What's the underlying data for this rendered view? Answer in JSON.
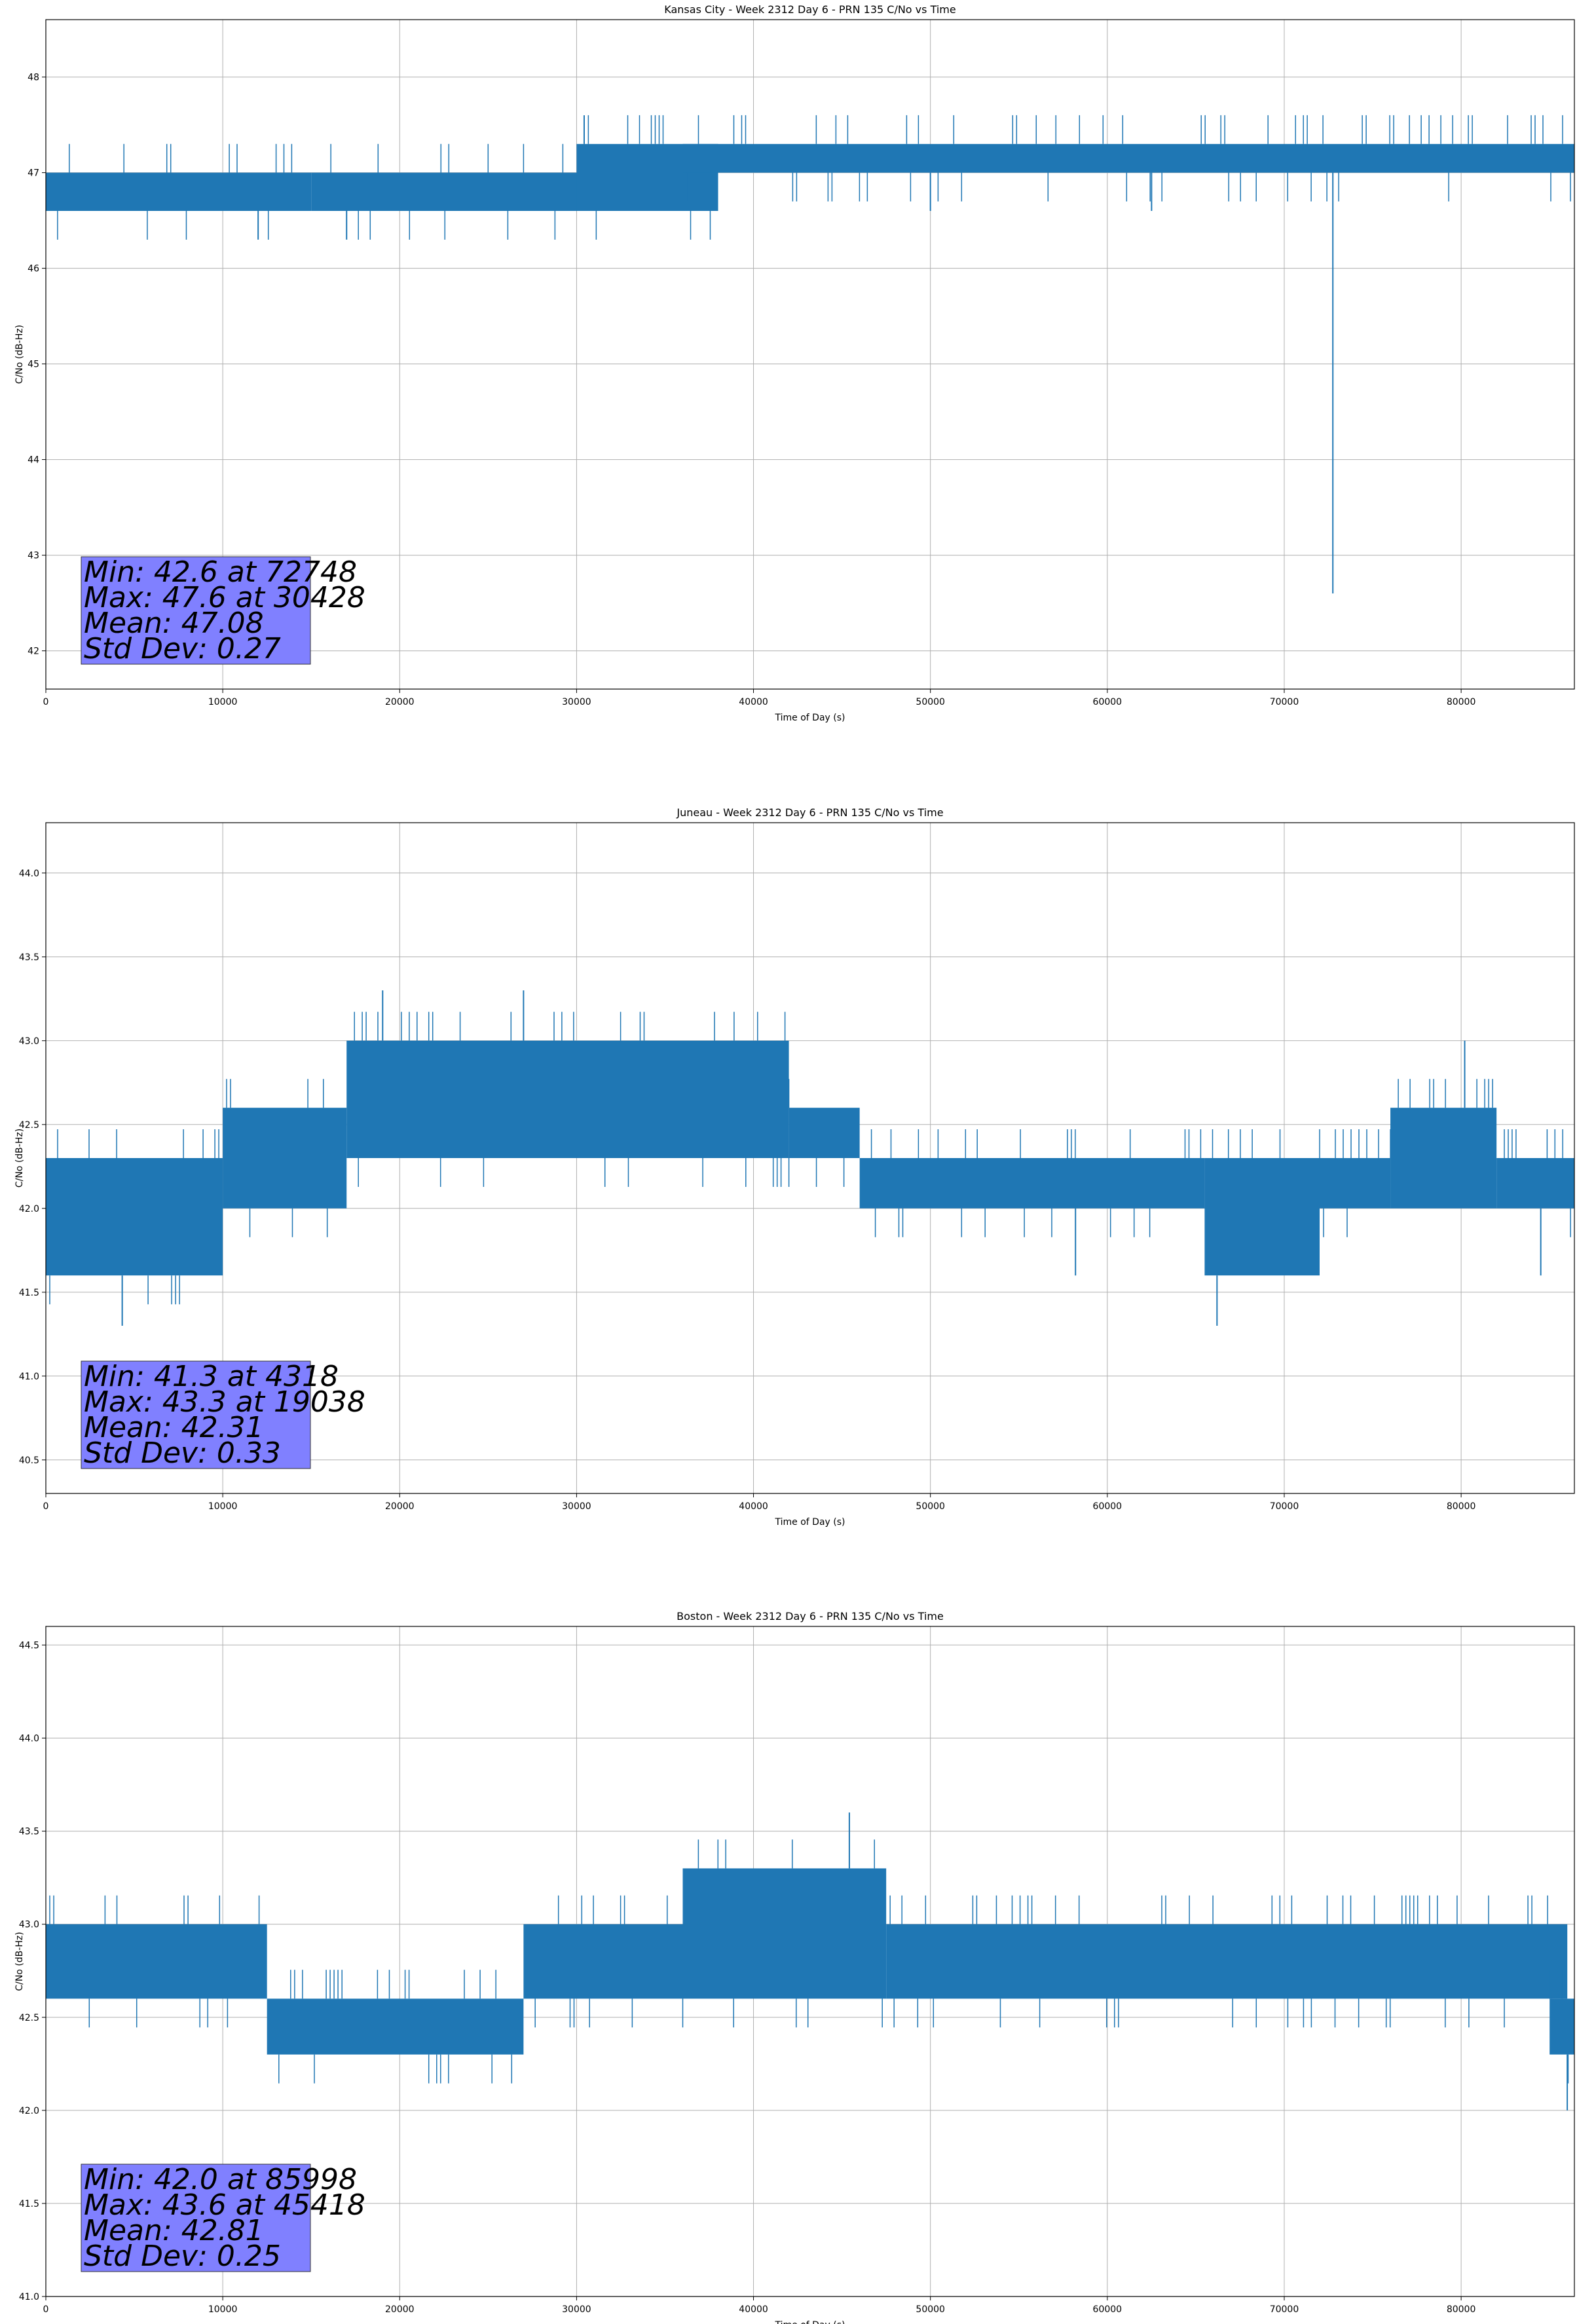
{
  "colors": {
    "line": "#1f77b4",
    "grid": "#b0b0b0",
    "stats_box": "#8080ff",
    "background": "#ffffff"
  },
  "chart_data": [
    {
      "type": "line",
      "title": "Kansas City - Week 2312 Day 6 - PRN 135 C/No vs Time",
      "xlabel": "Time of Day (s)",
      "ylabel": "C/No (dB-Hz)",
      "xlim": [
        0,
        86400
      ],
      "ylim": [
        41.6,
        48.6
      ],
      "xticks": [
        0,
        10000,
        20000,
        30000,
        40000,
        50000,
        60000,
        70000,
        80000
      ],
      "xtick_labels": [
        "0",
        "10000",
        "20000",
        "30000",
        "40000",
        "50000",
        "60000",
        "70000",
        "80000"
      ],
      "yticks": [
        42,
        43,
        44,
        45,
        46,
        47,
        48
      ],
      "ytick_labels": [
        "42",
        "43",
        "44",
        "45",
        "46",
        "47",
        "48"
      ],
      "grid": true,
      "signal_bands": [
        {
          "x": [
            0,
            15000
          ],
          "y": [
            46.6,
            47.0
          ]
        },
        {
          "x": [
            15000,
            31000
          ],
          "y": [
            46.6,
            47.0
          ]
        },
        {
          "x": [
            30000,
            38000
          ],
          "y": [
            46.6,
            47.3
          ]
        },
        {
          "x": [
            36000,
            86400
          ],
          "y": [
            47.0,
            47.3
          ]
        }
      ],
      "spikes": [
        {
          "x": 72748,
          "y": [
            47.0,
            42.6
          ]
        },
        {
          "x": 30428,
          "y": [
            47.3,
            47.6
          ]
        },
        {
          "x": 12000,
          "y": [
            46.6,
            46.3
          ]
        },
        {
          "x": 17000,
          "y": [
            46.6,
            46.3
          ]
        },
        {
          "x": 50000,
          "y": [
            47.0,
            46.6
          ]
        },
        {
          "x": 62500,
          "y": [
            47.0,
            46.6
          ]
        }
      ],
      "stats": [
        "Min: 42.6 at 72748",
        "Max: 47.6 at 30428",
        "Mean: 47.08",
        "Std Dev: 0.27"
      ]
    },
    {
      "type": "line",
      "title": "Juneau - Week 2312 Day 6 - PRN 135 C/No vs Time",
      "xlabel": "Time of Day (s)",
      "ylabel": "C/No (dB-Hz)",
      "xlim": [
        0,
        86400
      ],
      "ylim": [
        40.3,
        44.3
      ],
      "xticks": [
        0,
        10000,
        20000,
        30000,
        40000,
        50000,
        60000,
        70000,
        80000
      ],
      "xtick_labels": [
        "0",
        "10000",
        "20000",
        "30000",
        "40000",
        "50000",
        "60000",
        "70000",
        "80000"
      ],
      "yticks": [
        40.5,
        41.0,
        41.5,
        42.0,
        42.5,
        43.0,
        43.5,
        44.0
      ],
      "ytick_labels": [
        "40.5",
        "41.0",
        "41.5",
        "42.0",
        "42.5",
        "43.0",
        "43.5",
        "44.0"
      ],
      "grid": true,
      "signal_bands": [
        {
          "x": [
            0,
            10000
          ],
          "y": [
            41.6,
            42.3
          ]
        },
        {
          "x": [
            10000,
            17000
          ],
          "y": [
            42.0,
            42.6
          ]
        },
        {
          "x": [
            17000,
            42000
          ],
          "y": [
            42.3,
            43.0
          ]
        },
        {
          "x": [
            42000,
            46000
          ],
          "y": [
            42.3,
            42.6
          ]
        },
        {
          "x": [
            46000,
            65500
          ],
          "y": [
            42.0,
            42.3
          ]
        },
        {
          "x": [
            65500,
            72000
          ],
          "y": [
            41.6,
            42.3
          ]
        },
        {
          "x": [
            72000,
            76000
          ],
          "y": [
            42.0,
            42.3
          ]
        },
        {
          "x": [
            76000,
            82000
          ],
          "y": [
            42.0,
            42.6
          ]
        },
        {
          "x": [
            82000,
            86400
          ],
          "y": [
            42.0,
            42.3
          ]
        }
      ],
      "spikes": [
        {
          "x": 4318,
          "y": [
            41.6,
            41.3
          ]
        },
        {
          "x": 19038,
          "y": [
            43.0,
            43.3
          ]
        },
        {
          "x": 27000,
          "y": [
            43.0,
            43.3
          ]
        },
        {
          "x": 80200,
          "y": [
            42.6,
            43.0
          ]
        },
        {
          "x": 58200,
          "y": [
            42.0,
            41.6
          ]
        },
        {
          "x": 66200,
          "y": [
            41.6,
            41.3
          ]
        },
        {
          "x": 84500,
          "y": [
            42.0,
            41.6
          ]
        }
      ],
      "stats": [
        "Min: 41.3 at 4318",
        "Max: 43.3 at 19038",
        "Mean: 42.31",
        "Std Dev: 0.33"
      ]
    },
    {
      "type": "line",
      "title": "Boston - Week 2312 Day 6 - PRN 135 C/No vs Time",
      "xlabel": "Time of Day (s)",
      "ylabel": "C/No (dB-Hz)",
      "xlim": [
        0,
        86400
      ],
      "ylim": [
        41.0,
        44.6
      ],
      "xticks": [
        0,
        10000,
        20000,
        30000,
        40000,
        50000,
        60000,
        70000,
        80000
      ],
      "xtick_labels": [
        "0",
        "10000",
        "20000",
        "30000",
        "40000",
        "50000",
        "60000",
        "70000",
        "80000"
      ],
      "yticks": [
        41.0,
        41.5,
        42.0,
        42.5,
        43.0,
        43.5,
        44.0,
        44.5
      ],
      "ytick_labels": [
        "41.0",
        "41.5",
        "42.0",
        "42.5",
        "43.0",
        "43.5",
        "44.0",
        "44.5"
      ],
      "grid": true,
      "signal_bands": [
        {
          "x": [
            0,
            12500
          ],
          "y": [
            42.6,
            43.0
          ]
        },
        {
          "x": [
            12500,
            27000
          ],
          "y": [
            42.3,
            42.6
          ]
        },
        {
          "x": [
            27000,
            36000
          ],
          "y": [
            42.6,
            43.0
          ]
        },
        {
          "x": [
            36000,
            47500
          ],
          "y": [
            42.6,
            43.3
          ]
        },
        {
          "x": [
            47500,
            86000
          ],
          "y": [
            42.6,
            43.0
          ]
        },
        {
          "x": [
            85000,
            86400
          ],
          "y": [
            42.3,
            42.6
          ]
        }
      ],
      "spikes": [
        {
          "x": 45418,
          "y": [
            43.3,
            43.6
          ]
        },
        {
          "x": 85998,
          "y": [
            42.3,
            42.0
          ]
        }
      ],
      "stats": [
        "Min: 42.0 at 85998",
        "Max: 43.6 at 45418",
        "Mean: 42.81",
        "Std Dev: 0.25"
      ]
    }
  ]
}
